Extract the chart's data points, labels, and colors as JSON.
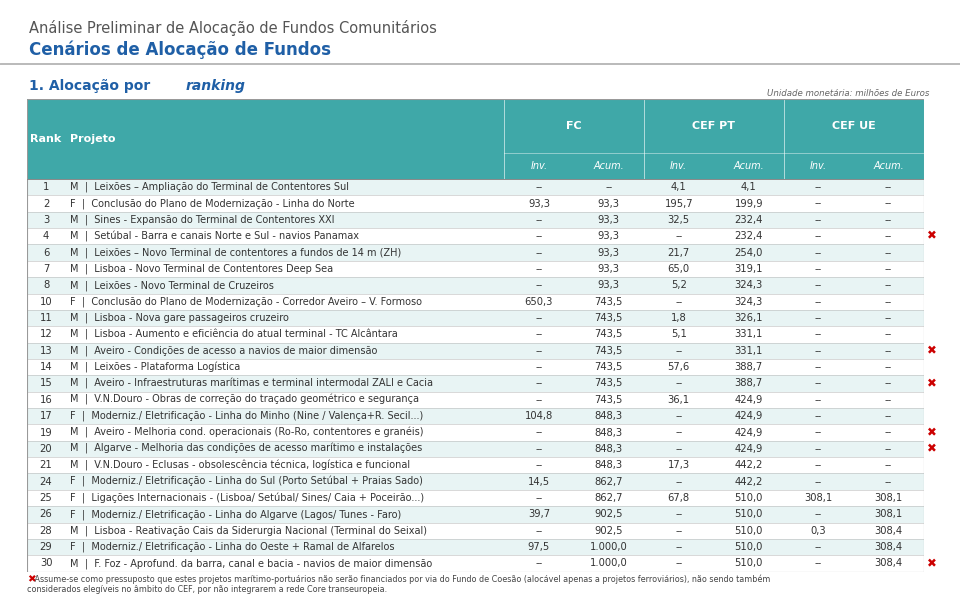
{
  "title_line1": "Análise Preliminar de Alocação de Fundos Comunitários",
  "title_line2": "Cenários de Alocação de Fundos",
  "unit_label": "Unidade monetária: milhões de Euros",
  "header_bg": "#3fa8a8",
  "alt_row_bg": "#e8f4f4",
  "white_row_bg": "#ffffff",
  "red_x_color": "#cc0000",
  "group_headers": [
    "FC",
    "CEF PT",
    "CEF UE"
  ],
  "rows": [
    {
      "rank": "1",
      "type": "M",
      "projeto": "Leixões – Ampliação do Terminal de Contentores Sul",
      "fc_inv": "--",
      "fc_acum": "--",
      "cef_inv": "4,1",
      "cef_acum": "4,1",
      "ue_inv": "--",
      "ue_acum": "--",
      "mark": false
    },
    {
      "rank": "2",
      "type": "F",
      "projeto": "Conclusão do Plano de Modernização - Linha do Norte",
      "fc_inv": "93,3",
      "fc_acum": "93,3",
      "cef_inv": "195,7",
      "cef_acum": "199,9",
      "ue_inv": "--",
      "ue_acum": "--",
      "mark": false
    },
    {
      "rank": "3",
      "type": "M",
      "projeto": "Sines - Expansão do Terminal de Contentores XXI",
      "fc_inv": "--",
      "fc_acum": "93,3",
      "cef_inv": "32,5",
      "cef_acum": "232,4",
      "ue_inv": "--",
      "ue_acum": "--",
      "mark": false
    },
    {
      "rank": "4",
      "type": "M",
      "projeto": "Setúbal - Barra e canais Norte e Sul - navios Panamax",
      "fc_inv": "--",
      "fc_acum": "93,3",
      "cef_inv": "--",
      "cef_acum": "232,4",
      "ue_inv": "--",
      "ue_acum": "--",
      "mark": true
    },
    {
      "rank": "6",
      "type": "M",
      "projeto": "Leixões – Novo Terminal de contentores a fundos de 14 m (ZH)",
      "fc_inv": "--",
      "fc_acum": "93,3",
      "cef_inv": "21,7",
      "cef_acum": "254,0",
      "ue_inv": "--",
      "ue_acum": "--",
      "mark": false
    },
    {
      "rank": "7",
      "type": "M",
      "projeto": "Lisboa - Novo Terminal de Contentores Deep Sea",
      "fc_inv": "--",
      "fc_acum": "93,3",
      "cef_inv": "65,0",
      "cef_acum": "319,1",
      "ue_inv": "--",
      "ue_acum": "--",
      "mark": false
    },
    {
      "rank": "8",
      "type": "M",
      "projeto": "Leixões - Novo Terminal de Cruzeiros",
      "fc_inv": "--",
      "fc_acum": "93,3",
      "cef_inv": "5,2",
      "cef_acum": "324,3",
      "ue_inv": "--",
      "ue_acum": "--",
      "mark": false
    },
    {
      "rank": "10",
      "type": "F",
      "projeto": "Conclusão do Plano de Modernização - Corredor Aveiro – V. Formoso",
      "fc_inv": "650,3",
      "fc_acum": "743,5",
      "cef_inv": "--",
      "cef_acum": "324,3",
      "ue_inv": "--",
      "ue_acum": "--",
      "mark": false
    },
    {
      "rank": "11",
      "type": "M",
      "projeto": "Lisboa - Nova gare passageiros cruzeiro",
      "fc_inv": "--",
      "fc_acum": "743,5",
      "cef_inv": "1,8",
      "cef_acum": "326,1",
      "ue_inv": "--",
      "ue_acum": "--",
      "mark": false
    },
    {
      "rank": "12",
      "type": "M",
      "projeto": "Lisboa - Aumento e eficiência do atual terminal - TC Alcântara",
      "fc_inv": "--",
      "fc_acum": "743,5",
      "cef_inv": "5,1",
      "cef_acum": "331,1",
      "ue_inv": "--",
      "ue_acum": "--",
      "mark": false
    },
    {
      "rank": "13",
      "type": "M",
      "projeto": "Aveiro - Condições de acesso a navios de maior dimensão",
      "fc_inv": "--",
      "fc_acum": "743,5",
      "cef_inv": "--",
      "cef_acum": "331,1",
      "ue_inv": "--",
      "ue_acum": "--",
      "mark": true
    },
    {
      "rank": "14",
      "type": "M",
      "projeto": "Leixões - Plataforma Logística",
      "fc_inv": "--",
      "fc_acum": "743,5",
      "cef_inv": "57,6",
      "cef_acum": "388,7",
      "ue_inv": "--",
      "ue_acum": "--",
      "mark": false
    },
    {
      "rank": "15",
      "type": "M",
      "projeto": "Aveiro - Infraestruturas marítimas e terminal intermodal ZALI e Cacia",
      "fc_inv": "--",
      "fc_acum": "743,5",
      "cef_inv": "--",
      "cef_acum": "388,7",
      "ue_inv": "--",
      "ue_acum": "--",
      "mark": true
    },
    {
      "rank": "16",
      "type": "M",
      "projeto": "V.N.Douro - Obras de correção do traçado geométrico e segurança",
      "fc_inv": "--",
      "fc_acum": "743,5",
      "cef_inv": "36,1",
      "cef_acum": "424,9",
      "ue_inv": "--",
      "ue_acum": "--",
      "mark": false
    },
    {
      "rank": "17",
      "type": "F",
      "projeto": "Moderniz./ Eletrificação - Linha do Minho (Nine / Valença+R. Secil...)",
      "fc_inv": "104,8",
      "fc_acum": "848,3",
      "cef_inv": "--",
      "cef_acum": "424,9",
      "ue_inv": "--",
      "ue_acum": "--",
      "mark": false
    },
    {
      "rank": "19",
      "type": "M",
      "projeto": "Aveiro - Melhoria cond. operacionais (Ro-Ro, contentores e granéis)",
      "fc_inv": "--",
      "fc_acum": "848,3",
      "cef_inv": "--",
      "cef_acum": "424,9",
      "ue_inv": "--",
      "ue_acum": "--",
      "mark": true
    },
    {
      "rank": "20",
      "type": "M",
      "projeto": "Algarve - Melhoria das condições de acesso marítimo e instalações",
      "fc_inv": "--",
      "fc_acum": "848,3",
      "cef_inv": "--",
      "cef_acum": "424,9",
      "ue_inv": "--",
      "ue_acum": "--",
      "mark": true
    },
    {
      "rank": "21",
      "type": "M",
      "projeto": "V.N.Douro - Eclusas - obsolescência técnica, logística e funcional",
      "fc_inv": "--",
      "fc_acum": "848,3",
      "cef_inv": "17,3",
      "cef_acum": "442,2",
      "ue_inv": "--",
      "ue_acum": "--",
      "mark": false
    },
    {
      "rank": "24",
      "type": "F",
      "projeto": "Moderniz./ Eletrificação - Linha do Sul (Porto Setúbal + Praias Sado)",
      "fc_inv": "14,5",
      "fc_acum": "862,7",
      "cef_inv": "--",
      "cef_acum": "442,2",
      "ue_inv": "--",
      "ue_acum": "--",
      "mark": false
    },
    {
      "rank": "25",
      "type": "F",
      "projeto": "Ligações Internacionais - (Lisboa/ Setúbal/ Sines/ Caia + Poceirão...)",
      "fc_inv": "--",
      "fc_acum": "862,7",
      "cef_inv": "67,8",
      "cef_acum": "510,0",
      "ue_inv": "308,1",
      "ue_acum": "308,1",
      "mark": false
    },
    {
      "rank": "26",
      "type": "F",
      "projeto": "Moderniz./ Eletrificação - Linha do Algarve (Lagos/ Tunes - Faro)",
      "fc_inv": "39,7",
      "fc_acum": "902,5",
      "cef_inv": "--",
      "cef_acum": "510,0",
      "ue_inv": "--",
      "ue_acum": "308,1",
      "mark": false
    },
    {
      "rank": "28",
      "type": "M",
      "projeto": "Lisboa - Reativação Cais da Siderurgia Nacional (Terminal do Seixal)",
      "fc_inv": "--",
      "fc_acum": "902,5",
      "cef_inv": "--",
      "cef_acum": "510,0",
      "ue_inv": "0,3",
      "ue_acum": "308,4",
      "mark": false
    },
    {
      "rank": "29",
      "type": "F",
      "projeto": "Moderniz./ Eletrificação - Linha do Oeste + Ramal de Alfarelos",
      "fc_inv": "97,5",
      "fc_acum": "1.000,0",
      "cef_inv": "--",
      "cef_acum": "510,0",
      "ue_inv": "--",
      "ue_acum": "308,4",
      "mark": false
    },
    {
      "rank": "30",
      "type": "M",
      "projeto": "F. Foz - Aprofund. da barra, canal e bacia - navios de maior dimensão",
      "fc_inv": "--",
      "fc_acum": "1.000,0",
      "cef_inv": "--",
      "cef_acum": "510,0",
      "ue_inv": "--",
      "ue_acum": "308,4",
      "mark": true
    }
  ],
  "footnote_line1": "   Assume-se como pressuposto que estes projetos marítimo-portuários não serão financiados por via do Fundo de Coesão (alocável apenas a projetos ferroviários), não sendo também",
  "footnote_line2": "considerados elegíveis no âmbito do CEF, por não integrarem a rede Core transeuropeia."
}
